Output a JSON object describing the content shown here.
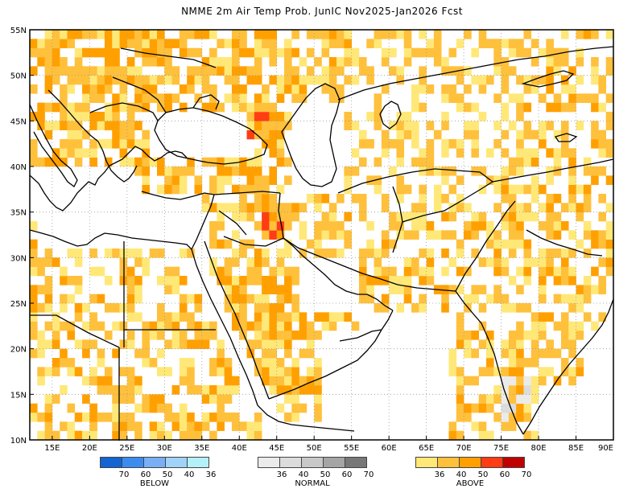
{
  "title": "NMME 2m Air Temp Prob. JunIC   Nov2025-Jan2026 Fcst",
  "map": {
    "region": {
      "lon_min": 12,
      "lon_max": 90,
      "lat_min": 10,
      "lat_max": 55
    },
    "lon_ticks": [
      "15E",
      "20E",
      "25E",
      "30E",
      "35E",
      "40E",
      "45E",
      "50E",
      "55E",
      "60E",
      "65E",
      "70E",
      "75E",
      "80E",
      "85E",
      "90E"
    ],
    "lat_ticks": [
      "55N",
      "50N",
      "45N",
      "40N",
      "35N",
      "30N",
      "25N",
      "20N",
      "15N",
      "10N"
    ]
  },
  "legend": {
    "below": {
      "label": "BELOW",
      "ticks": [
        "70",
        "60",
        "50",
        "40",
        "36"
      ],
      "colors": [
        "#1464d2",
        "#3c8cf0",
        "#78aff5",
        "#a0d2fa",
        "#b4f0fa"
      ]
    },
    "normal": {
      "label": "NORMAL",
      "ticks": [
        "36",
        "40",
        "50",
        "60",
        "70"
      ],
      "colors": [
        "#ebebeb",
        "#dcdcdc",
        "#c8c8c8",
        "#a5a5a5",
        "#787878"
      ]
    },
    "above": {
      "label": "ABOVE",
      "ticks": [
        "36",
        "40",
        "50",
        "60",
        "70"
      ],
      "colors": [
        "#ffe878",
        "#ffc03c",
        "#ffa000",
        "#ff3c14",
        "#c00000"
      ]
    }
  }
}
